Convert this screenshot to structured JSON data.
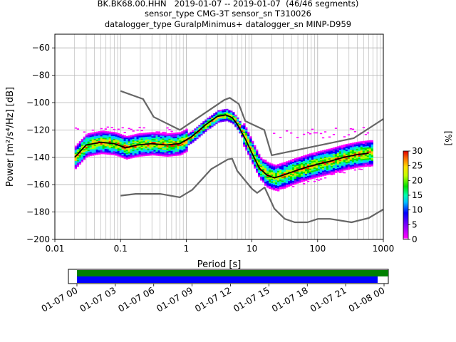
{
  "title_lines": [
    "BK.BK68.00.HHN   2019-01-07 -- 2019-01-07  (46/46 segments)",
    "sensor_type CMG-3T sensor_sn T310026",
    "datalogger_type GuralpMinimus+ datalogger_sn MINP-D959"
  ],
  "chart_data": [
    {
      "type": "heatmap",
      "xlabel": "Period [s]",
      "ylabel": "Power [m²/s⁴/Hz] [dB]",
      "xscale": "log",
      "xlim": [
        0.01,
        1000
      ],
      "ylim": [
        -200,
        -50
      ],
      "xticks": [
        0.01,
        0.1,
        1,
        10,
        100,
        1000
      ],
      "xtick_labels": [
        "0.01",
        "0.1",
        "1",
        "10",
        "100",
        "1000"
      ],
      "yticks": [
        -200,
        -180,
        -160,
        -140,
        -120,
        -100,
        -80,
        -60
      ],
      "grid": true,
      "colorbar": {
        "label": "[%]",
        "min": 0,
        "max": 30,
        "ticks": [
          0,
          5,
          10,
          15,
          20,
          25,
          30
        ]
      },
      "noise_model_upper": {
        "period": [
          0.1,
          0.22,
          0.32,
          0.8,
          3.8,
          4.6,
          6.3,
          7.9,
          15.4,
          20,
          354.8,
          1000
        ],
        "db": [
          -91.5,
          -97.4,
          -110.5,
          -120,
          -98,
          -96.5,
          -101,
          -113.5,
          -120,
          -138.5,
          -126,
          -112
        ]
      },
      "noise_model_lower": {
        "period": [
          0.1,
          0.17,
          0.4,
          0.8,
          1.24,
          2.4,
          4.3,
          5,
          6,
          10,
          12,
          15.6,
          21.9,
          31.6,
          45,
          70,
          101,
          154,
          328,
          600,
          1000
        ],
        "db": [
          -168,
          -166.7,
          -166.7,
          -169.2,
          -163.7,
          -148.6,
          -141.5,
          -141,
          -150,
          -163,
          -166,
          -162,
          -177.5,
          -185,
          -187.5,
          -187.5,
          -185,
          -185,
          -187.5,
          -184.4,
          -178
        ]
      },
      "mode_curve": {
        "period": [
          0.02,
          0.03,
          0.05,
          0.08,
          0.12,
          0.18,
          0.3,
          0.5,
          0.8,
          1.2,
          2,
          3,
          4,
          5,
          6,
          8,
          10,
          13,
          17,
          22,
          30,
          45,
          70,
          100,
          150,
          250,
          400,
          600
        ],
        "db": [
          -140,
          -131,
          -129,
          -130,
          -133,
          -131,
          -130,
          -131,
          -130,
          -125,
          -116,
          -110,
          -109,
          -111,
          -116,
          -127,
          -137,
          -148,
          -153,
          -155,
          -153,
          -150,
          -147,
          -145,
          -143,
          -140,
          -138,
          -137
        ]
      }
    },
    {
      "type": "bar",
      "orientation": "horizontal",
      "xlim": [
        "2019-01-06T23:20",
        "2019-01-08T00:20"
      ],
      "xtick_labels": [
        "01-07 00",
        "01-07 03",
        "01-07 06",
        "01-07 09",
        "01-07 12",
        "01-07 15",
        "01-07 18",
        "01-07 21",
        "01-08 00"
      ],
      "xtick_times": [
        "2019-01-07T00:00",
        "2019-01-07T03:00",
        "2019-01-07T06:00",
        "2019-01-07T09:00",
        "2019-01-07T12:00",
        "2019-01-07T15:00",
        "2019-01-07T18:00",
        "2019-01-07T21:00",
        "2019-01-08T00:00"
      ],
      "series": [
        {
          "start": "2019-01-07T00:00",
          "end": "2019-01-08T00:30",
          "color": "#008000"
        },
        {
          "start": "2019-01-07T00:00",
          "end": "2019-01-07T23:30",
          "color": "#0000ff"
        }
      ]
    }
  ],
  "colors": {
    "noise_model": "#666666",
    "mode_curve": "#000000",
    "grid": "#b0b0b0"
  }
}
